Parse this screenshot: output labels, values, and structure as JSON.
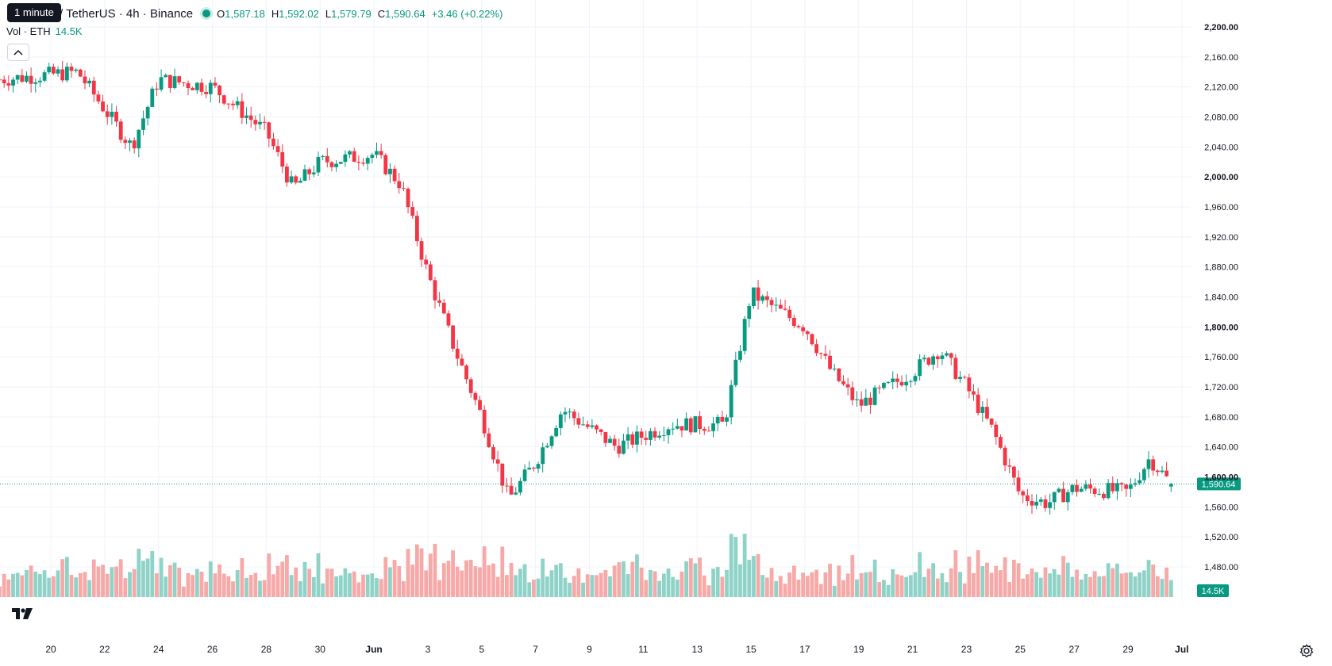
{
  "legend": {
    "title": "um / TetherUS · 4h · Binance",
    "open_label": "O",
    "open": "1,587.18",
    "high_label": "H",
    "high": "1,592.02",
    "low_label": "L",
    "low": "1,579.79",
    "close_label": "C",
    "close": "1,590.64",
    "change": "+3.46 (+0.22%)"
  },
  "tooltip": "1 minute",
  "volume_legend": {
    "label": "Vol · ETH",
    "value": "14.5K"
  },
  "price_axis": {
    "labels": [
      "2,200.00",
      "2,160.00",
      "2,120.00",
      "2,080.00",
      "2,040.00",
      "2,000.00",
      "1,960.00",
      "1,920.00",
      "1,880.00",
      "1,840.00",
      "1,800.00",
      "1,760.00",
      "1,720.00",
      "1,680.00",
      "1,640.00",
      "1,600.00",
      "1,560.00",
      "1,520.00",
      "1,480.00"
    ],
    "current_price_label": "1,590.64",
    "volume_label": "14.5K"
  },
  "time_axis": {
    "labels": [
      "20",
      "22",
      "24",
      "26",
      "28",
      "30",
      "Jun",
      "3",
      "5",
      "7",
      "9",
      "11",
      "13",
      "15",
      "17",
      "19",
      "21",
      "23",
      "25",
      "27",
      "29",
      "Jul"
    ]
  },
  "colors": {
    "up": "#089981",
    "down": "#f23645",
    "vol_up": "#8fd3c8",
    "vol_down": "#f7a9a7",
    "grid": "#f0f3fa"
  },
  "icons": {
    "logo": "tradingview-logo-icon",
    "settings": "gear-icon",
    "collapse": "chevron-up-icon"
  },
  "chart_data": {
    "type": "candlestick",
    "interval": "4h",
    "symbol": "ETH / USDT",
    "ylim": [
      1460,
      2210
    ],
    "grid": true,
    "last_price": 1590.64,
    "key_points": [
      {
        "date": "May 19",
        "price": 2130
      },
      {
        "date": "May 21",
        "price": 2140
      },
      {
        "date": "May 23",
        "price": 2040
      },
      {
        "date": "May 24",
        "price": 2130
      },
      {
        "date": "May 26",
        "price": 2120
      },
      {
        "date": "May 28",
        "price": 2060
      },
      {
        "date": "May 29",
        "price": 1985
      },
      {
        "date": "May 30",
        "price": 2020
      },
      {
        "date": "Jun 1",
        "price": 2030
      },
      {
        "date": "Jun 2",
        "price": 1990
      },
      {
        "date": "Jun 3",
        "price": 1870
      },
      {
        "date": "Jun 4",
        "price": 1770
      },
      {
        "date": "Jun 5",
        "price": 1680
      },
      {
        "date": "Jun 6",
        "price": 1570
      },
      {
        "date": "Jun 7",
        "price": 1620
      },
      {
        "date": "Jun 8",
        "price": 1690
      },
      {
        "date": "Jun 10",
        "price": 1640
      },
      {
        "date": "Jun 12",
        "price": 1670
      },
      {
        "date": "Jun 14",
        "price": 1670
      },
      {
        "date": "Jun 15",
        "price": 1845
      },
      {
        "date": "Jun 17",
        "price": 1800
      },
      {
        "date": "Jun 18",
        "price": 1740
      },
      {
        "date": "Jun 19",
        "price": 1695
      },
      {
        "date": "Jun 21",
        "price": 1740
      },
      {
        "date": "Jun 22",
        "price": 1770
      },
      {
        "date": "Jun 23",
        "price": 1720
      },
      {
        "date": "Jun 24",
        "price": 1660
      },
      {
        "date": "Jun 25",
        "price": 1575
      },
      {
        "date": "Jun 26",
        "price": 1565
      },
      {
        "date": "Jun 27",
        "price": 1585
      },
      {
        "date": "Jun 29",
        "price": 1580
      },
      {
        "date": "Jun 30",
        "price": 1625
      },
      {
        "date": "Jun 30",
        "price": 1590.64
      }
    ]
  }
}
